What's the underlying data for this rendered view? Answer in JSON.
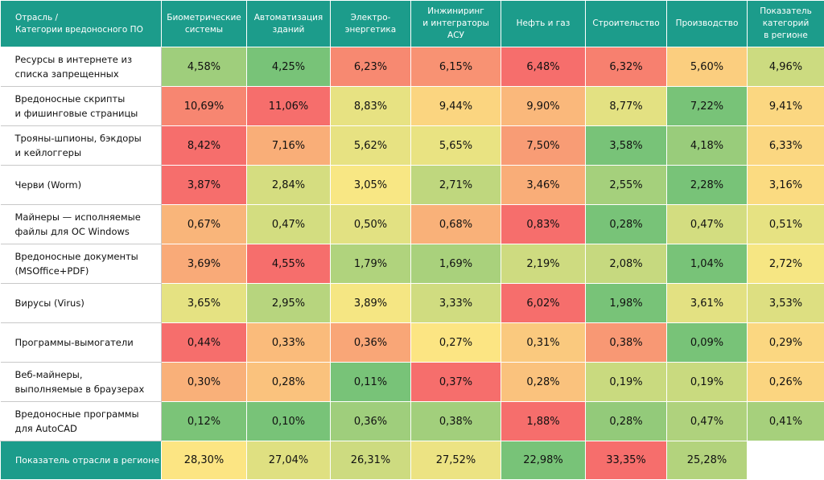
{
  "table": {
    "header": [
      "Отрасль /\nКатегории вредоносного ПО",
      "Биометрические\nсистемы",
      "Автоматизация\nзданий",
      "Электро-\nэнергетика",
      "Инжиниринг\nи интеграторы\nАСУ",
      "Нефть и газ",
      "Строительство",
      "Производство",
      "Показатель\nкатегорий\nв регионе"
    ],
    "rows": [
      [
        "Ресурсы в интернете из\nсписка запрещенных",
        "4,58%",
        "4,25%",
        "6,23%",
        "6,15%",
        "6,48%",
        "6,32%",
        "5,60%",
        "4,96%"
      ],
      [
        "Вредоносные скрипты\nи фишинговые страницы",
        "10,69%",
        "11,06%",
        "8,83%",
        "9,44%",
        "9,90%",
        "8,77%",
        "7,22%",
        "9,41%"
      ],
      [
        "Трояны-шпионы, бэкдоры\nи кейлоггеры",
        "8,42%",
        "7,16%",
        "5,62%",
        "5,65%",
        "7,50%",
        "3,58%",
        "4,18%",
        "6,33%"
      ],
      [
        "Черви (Worm)",
        "3,87%",
        "2,84%",
        "3,05%",
        "2,71%",
        "3,46%",
        "2,55%",
        "2,28%",
        "3,16%"
      ],
      [
        "Майнеры — исполняемые\nфайлы для ОС Windows",
        "0,67%",
        "0,47%",
        "0,50%",
        "0,68%",
        "0,83%",
        "0,28%",
        "0,47%",
        "0,51%"
      ],
      [
        "Вредоносные документы\n(MSOffice+PDF)",
        "3,69%",
        "4,55%",
        "1,79%",
        "1,69%",
        "2,19%",
        "2,08%",
        "1,04%",
        "2,72%"
      ],
      [
        "Вирусы (Virus)",
        "3,65%",
        "2,95%",
        "3,89%",
        "3,33%",
        "6,02%",
        "1,98%",
        "3,61%",
        "3,53%"
      ],
      [
        "Программы-вымогатели",
        "0,44%",
        "0,33%",
        "0,36%",
        "0,27%",
        "0,31%",
        "0,38%",
        "0,09%",
        "0,29%"
      ],
      [
        "Веб-майнеры,\nвыполняемые в браузерах",
        "0,30%",
        "0,28%",
        "0,11%",
        "0,37%",
        "0,28%",
        "0,19%",
        "0,19%",
        "0,26%"
      ],
      [
        "Вредоносные программы\nдля AutoCAD",
        "0,12%",
        "0,10%",
        "0,36%",
        "0,38%",
        "1,88%",
        "0,28%",
        "0,47%",
        "0,41%"
      ]
    ],
    "footer": [
      "Показатель отрасли в регионе",
      "28,30%",
      "27,04%",
      "26,31%",
      "27,52%",
      "22,98%",
      "33,35%",
      "25,28%"
    ]
  }
}
